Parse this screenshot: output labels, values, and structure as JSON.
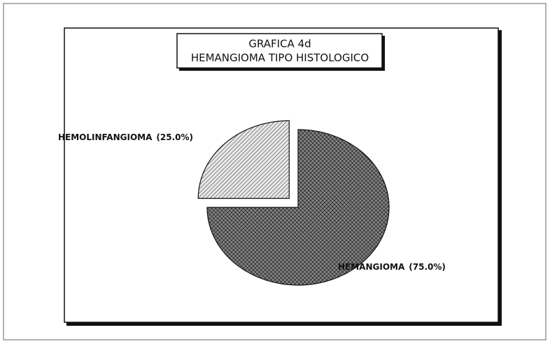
{
  "chart_data": {
    "type": "pie",
    "title": [
      "GRAFICA 4d",
      "HEMANGIOMA TIPO HISTOLOGICO"
    ],
    "categories": [
      "HEMOLINFANGIOMA",
      "HEMANGIOMA"
    ],
    "values": [
      25,
      75
    ],
    "value_labels": [
      "(25.0%)",
      "(75.0%)"
    ],
    "exploded": [
      true,
      false
    ]
  }
}
